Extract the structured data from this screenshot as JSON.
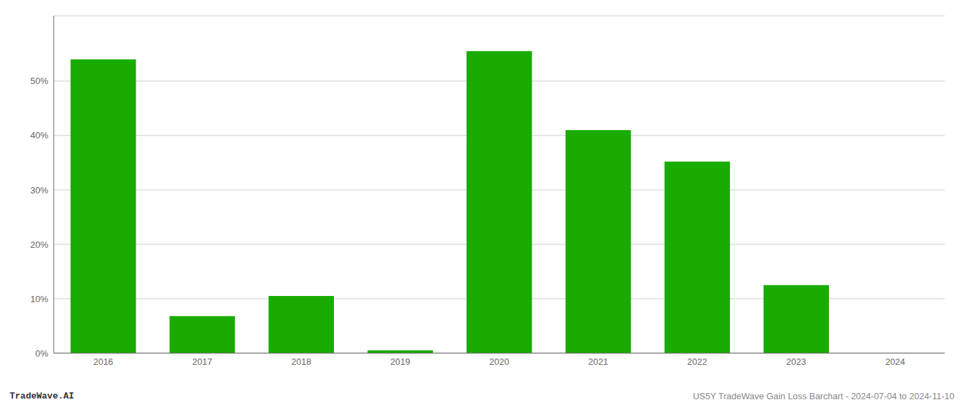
{
  "chart_data": {
    "type": "bar",
    "categories": [
      "2016",
      "2017",
      "2018",
      "2019",
      "2020",
      "2021",
      "2022",
      "2023",
      "2024"
    ],
    "values": [
      0.54,
      0.068,
      0.105,
      0.005,
      0.555,
      0.41,
      0.352,
      0.125,
      0.0
    ],
    "color": "#1aab00",
    "ylim": [
      0,
      0.62
    ],
    "yticks": [
      {
        "value": 0.0,
        "label": "0%"
      },
      {
        "value": 0.1,
        "label": "10%"
      },
      {
        "value": 0.2,
        "label": "20%"
      },
      {
        "value": 0.3,
        "label": "30%"
      },
      {
        "value": 0.4,
        "label": "40%"
      },
      {
        "value": 0.5,
        "label": "50%"
      }
    ],
    "grid": true,
    "annotations": [
      "TradeWave.AI",
      "US5Y TradeWave Gain Loss Barchart - 2024-07-04 to 2024-11-10"
    ]
  }
}
